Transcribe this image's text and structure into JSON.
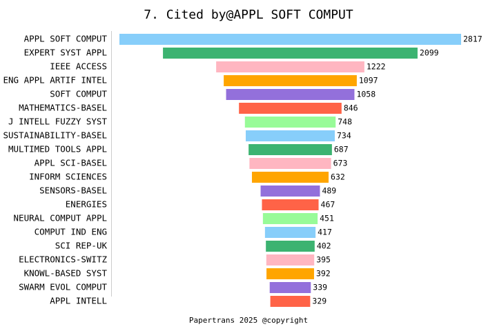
{
  "chart_data": {
    "type": "funnel-bar",
    "title": "7. Cited by@APPL SOFT COMPUT",
    "categories": [
      "APPL SOFT COMPUT",
      "EXPERT SYST APPL",
      "IEEE ACCESS",
      "ENG APPL ARTIF INTEL",
      "SOFT COMPUT",
      "MATHEMATICS-BASEL",
      "J INTELL FUZZY SYST",
      "SUSTAINABILITY-BASEL",
      "MULTIMED TOOLS APPL",
      "APPL SCI-BASEL",
      "INFORM SCIENCES",
      "SENSORS-BASEL",
      "ENERGIES",
      "NEURAL COMPUT APPL",
      "COMPUT IND ENG",
      "SCI REP-UK",
      "ELECTRONICS-SWITZ",
      "KNOWL-BASED SYST",
      "SWARM EVOL COMPUT",
      "APPL INTELL"
    ],
    "values": [
      2817,
      2099,
      1222,
      1097,
      1058,
      846,
      748,
      734,
      687,
      673,
      632,
      489,
      467,
      451,
      417,
      402,
      395,
      392,
      339,
      329
    ],
    "colors": [
      "#87cefa",
      "#3cb371",
      "#ffb6c1",
      "#ffa500",
      "#9370db",
      "#ff6347",
      "#98fb98",
      "#87cefa",
      "#3cb371",
      "#ffb6c1",
      "#ffa500",
      "#9370db",
      "#ff6347",
      "#98fb98",
      "#87cefa",
      "#3cb371",
      "#ffb6c1",
      "#ffa500",
      "#9370db",
      "#ff6347"
    ],
    "footer": "Papertrans 2025 @copyright"
  }
}
